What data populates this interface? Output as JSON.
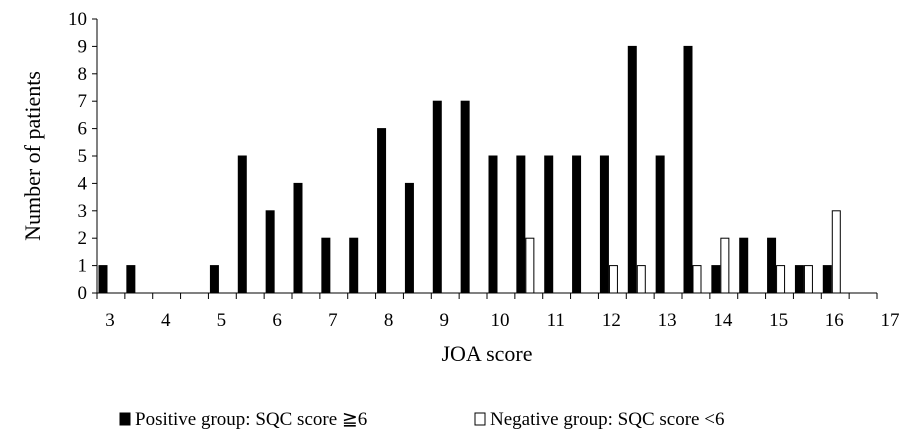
{
  "chart_data": {
    "type": "bar",
    "title": "",
    "xlabel": "JOA score",
    "ylabel": "Number of patients",
    "xlim": [
      3,
      17
    ],
    "ylim": [
      0,
      10
    ],
    "x_ticks": [
      "3",
      "4",
      "5",
      "6",
      "7",
      "8",
      "9",
      "10",
      "11",
      "12",
      "13",
      "14",
      "15",
      "16",
      "17"
    ],
    "y_ticks": [
      "0",
      "1",
      "2",
      "3",
      "4",
      "5",
      "6",
      "7",
      "8",
      "9",
      "10"
    ],
    "x": [
      3,
      3.5,
      4,
      4.5,
      5,
      5.5,
      6,
      6.5,
      7,
      7.5,
      8,
      8.5,
      9,
      9.5,
      10,
      10.5,
      11,
      11.5,
      12,
      12.5,
      13,
      13.5,
      14,
      14.5,
      15,
      15.5,
      16,
      16.5
    ],
    "series": [
      {
        "name": "Positive group: SQC score ≧6",
        "color": "#000000",
        "values": [
          1,
          1,
          0,
          0,
          1,
          5,
          3,
          4,
          2,
          2,
          6,
          4,
          7,
          7,
          5,
          5,
          5,
          5,
          5,
          9,
          5,
          9,
          1,
          2,
          2,
          1,
          1,
          0
        ]
      },
      {
        "name": "Negative group: SQC score <6",
        "color": "#ffffff",
        "values": [
          0,
          0,
          0,
          0,
          0,
          0,
          0,
          0,
          0,
          0,
          0,
          0,
          0,
          0,
          0,
          2,
          0,
          0,
          1,
          1,
          0,
          1,
          2,
          0,
          1,
          1,
          3,
          0
        ]
      }
    ],
    "legend_position": "bottom",
    "grid": false
  }
}
